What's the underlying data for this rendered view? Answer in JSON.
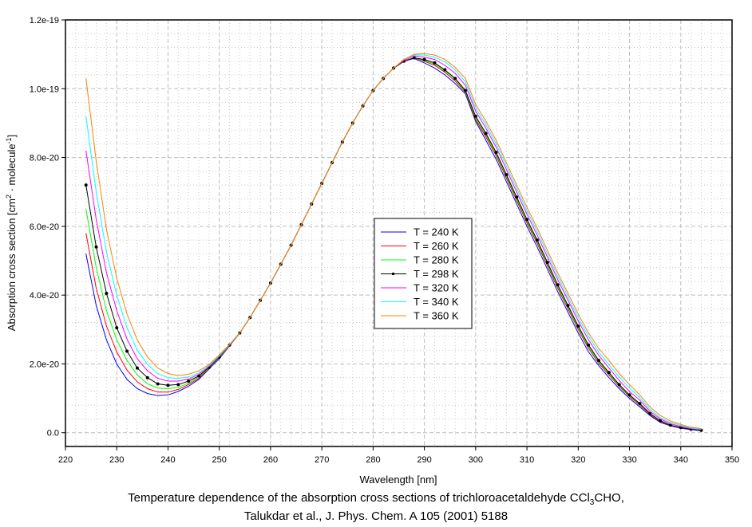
{
  "chart_data": {
    "type": "line",
    "title_line1": "Temperature dependence of the absorption cross sections of trichloroacetaldehyde CCl",
    "title_sub": "3",
    "title_line1_end": "CHO,",
    "title_line2": "Talukdar et al., J. Phys. Chem. A 105 (2001) 5188",
    "xlabel": "Wavelength [nm]",
    "ylabel_main": "Absorption cross section [cm",
    "ylabel_sup1": "2",
    "ylabel_mid": " · molecule",
    "ylabel_sup2": "-1",
    "ylabel_end": "]",
    "xlim": [
      220,
      350
    ],
    "ylim": [
      -0.4,
      12
    ],
    "y_unit_multiplier": 1e-20,
    "grid": true,
    "legend_position": "center",
    "xticks": [
      220,
      230,
      240,
      250,
      260,
      270,
      280,
      290,
      300,
      310,
      320,
      330,
      340,
      350
    ],
    "xtick_labels": [
      "220",
      "230",
      "240",
      "250",
      "260",
      "270",
      "280",
      "290",
      "300",
      "310",
      "320",
      "330",
      "340",
      "350"
    ],
    "yticks": [
      0,
      2,
      4,
      6,
      8,
      10,
      12
    ],
    "ytick_labels": [
      "0.0",
      "2.0e-20",
      "4.0e-20",
      "6.0e-20",
      "8.0e-20",
      "1.0e-19",
      "1.2e-19"
    ],
    "x": [
      224,
      226,
      228,
      230,
      232,
      234,
      236,
      238,
      240,
      242,
      244,
      246,
      248,
      250,
      252,
      254,
      256,
      258,
      260,
      262,
      264,
      266,
      268,
      270,
      272,
      274,
      276,
      278,
      280,
      282,
      284,
      286,
      288,
      290,
      292,
      294,
      296,
      298,
      300,
      302,
      304,
      306,
      308,
      310,
      312,
      314,
      316,
      318,
      320,
      322,
      324,
      326,
      328,
      330,
      332,
      334,
      336,
      338,
      340,
      342,
      344
    ],
    "series": [
      {
        "name": "T = 240 K",
        "color": "#0000ff",
        "markers": false,
        "values": [
          5.2,
          3.7,
          2.7,
          2.0,
          1.55,
          1.28,
          1.14,
          1.08,
          1.1,
          1.2,
          1.35,
          1.55,
          1.85,
          2.15,
          2.52,
          2.9,
          3.35,
          3.85,
          4.35,
          4.9,
          5.45,
          6.05,
          6.65,
          7.25,
          7.85,
          8.45,
          9.0,
          9.5,
          9.95,
          10.3,
          10.6,
          10.8,
          10.88,
          10.75,
          10.6,
          10.4,
          10.15,
          9.85,
          9.05,
          8.5,
          7.95,
          7.3,
          6.65,
          6.0,
          5.4,
          4.75,
          4.1,
          3.5,
          2.9,
          2.35,
          1.95,
          1.6,
          1.28,
          1.0,
          0.75,
          0.5,
          0.3,
          0.2,
          0.13,
          0.09,
          0.06
        ]
      },
      {
        "name": "T = 260 K",
        "color": "#ff0000",
        "markers": false,
        "values": [
          5.8,
          4.2,
          3.1,
          2.35,
          1.82,
          1.48,
          1.28,
          1.18,
          1.18,
          1.26,
          1.4,
          1.58,
          1.87,
          2.17,
          2.53,
          2.9,
          3.35,
          3.85,
          4.35,
          4.9,
          5.45,
          6.05,
          6.65,
          7.25,
          7.85,
          8.45,
          9.0,
          9.5,
          9.95,
          10.3,
          10.6,
          10.8,
          10.9,
          10.8,
          10.68,
          10.48,
          10.22,
          9.9,
          9.1,
          8.6,
          8.05,
          7.4,
          6.75,
          6.1,
          5.5,
          4.85,
          4.2,
          3.6,
          3.0,
          2.45,
          2.02,
          1.68,
          1.34,
          1.05,
          0.8,
          0.53,
          0.32,
          0.21,
          0.14,
          0.1,
          0.07
        ]
      },
      {
        "name": "T = 280 K",
        "color": "#00ff00",
        "markers": false,
        "values": [
          6.5,
          4.8,
          3.55,
          2.7,
          2.1,
          1.68,
          1.42,
          1.3,
          1.28,
          1.32,
          1.44,
          1.62,
          1.88,
          2.18,
          2.54,
          2.9,
          3.35,
          3.85,
          4.35,
          4.9,
          5.45,
          6.05,
          6.65,
          7.25,
          7.85,
          8.45,
          9.0,
          9.5,
          9.95,
          10.3,
          10.6,
          10.8,
          10.9,
          10.82,
          10.72,
          10.52,
          10.27,
          9.92,
          9.15,
          8.65,
          8.1,
          7.45,
          6.8,
          6.15,
          5.55,
          4.9,
          4.25,
          3.65,
          3.05,
          2.5,
          2.06,
          1.72,
          1.37,
          1.08,
          0.83,
          0.55,
          0.34,
          0.22,
          0.15,
          0.1,
          0.07
        ]
      },
      {
        "name": "T = 298 K",
        "color": "#000000",
        "markers": true,
        "values": [
          7.2,
          5.4,
          4.05,
          3.05,
          2.37,
          1.88,
          1.6,
          1.42,
          1.38,
          1.4,
          1.5,
          1.65,
          1.9,
          2.2,
          2.55,
          2.9,
          3.35,
          3.85,
          4.35,
          4.9,
          5.45,
          6.05,
          6.65,
          7.25,
          7.85,
          8.45,
          9.0,
          9.5,
          9.95,
          10.3,
          10.6,
          10.8,
          10.9,
          10.85,
          10.75,
          10.55,
          10.3,
          9.95,
          9.2,
          8.7,
          8.15,
          7.5,
          6.85,
          6.2,
          5.6,
          4.95,
          4.3,
          3.7,
          3.1,
          2.55,
          2.1,
          1.75,
          1.4,
          1.1,
          0.85,
          0.56,
          0.35,
          0.22,
          0.15,
          0.1,
          0.07
        ]
      },
      {
        "name": "T = 320 K",
        "color": "#ff00ff",
        "markers": false,
        "values": [
          8.2,
          6.2,
          4.65,
          3.55,
          2.72,
          2.15,
          1.8,
          1.58,
          1.5,
          1.5,
          1.56,
          1.7,
          1.92,
          2.22,
          2.55,
          2.9,
          3.35,
          3.85,
          4.35,
          4.9,
          5.45,
          6.05,
          6.65,
          7.25,
          7.85,
          8.45,
          9.0,
          9.5,
          9.95,
          10.3,
          10.6,
          10.82,
          10.95,
          10.92,
          10.85,
          10.68,
          10.45,
          10.1,
          9.35,
          8.85,
          8.3,
          7.65,
          7.0,
          6.35,
          5.75,
          5.1,
          4.45,
          3.85,
          3.25,
          2.7,
          2.25,
          1.88,
          1.52,
          1.2,
          0.95,
          0.62,
          0.4,
          0.26,
          0.18,
          0.12,
          0.09
        ]
      },
      {
        "name": "T = 340 K",
        "color": "#00ffff",
        "markers": false,
        "values": [
          9.2,
          7.0,
          5.25,
          4.0,
          3.05,
          2.4,
          1.98,
          1.72,
          1.6,
          1.58,
          1.62,
          1.74,
          1.95,
          2.24,
          2.56,
          2.9,
          3.35,
          3.85,
          4.35,
          4.9,
          5.45,
          6.05,
          6.65,
          7.25,
          7.85,
          8.45,
          9.0,
          9.5,
          9.95,
          10.3,
          10.6,
          10.85,
          10.98,
          10.98,
          10.92,
          10.78,
          10.55,
          10.2,
          9.45,
          8.95,
          8.4,
          7.75,
          7.1,
          6.45,
          5.85,
          5.2,
          4.55,
          3.95,
          3.35,
          2.8,
          2.35,
          1.98,
          1.62,
          1.3,
          1.02,
          0.68,
          0.44,
          0.3,
          0.21,
          0.14,
          0.1
        ]
      },
      {
        "name": "T = 360 K",
        "color": "#ff8000",
        "markers": false,
        "values": [
          10.3,
          7.9,
          5.9,
          4.5,
          3.45,
          2.7,
          2.2,
          1.88,
          1.72,
          1.66,
          1.7,
          1.8,
          1.98,
          2.26,
          2.57,
          2.9,
          3.35,
          3.85,
          4.35,
          4.9,
          5.45,
          6.05,
          6.65,
          7.25,
          7.85,
          8.45,
          9.0,
          9.5,
          9.95,
          10.3,
          10.6,
          10.85,
          11.0,
          11.02,
          10.98,
          10.85,
          10.62,
          10.3,
          9.55,
          9.05,
          8.5,
          7.85,
          7.2,
          6.55,
          5.95,
          5.3,
          4.65,
          4.05,
          3.45,
          2.9,
          2.45,
          2.1,
          1.72,
          1.4,
          1.1,
          0.75,
          0.5,
          0.34,
          0.24,
          0.16,
          0.12
        ]
      }
    ]
  }
}
